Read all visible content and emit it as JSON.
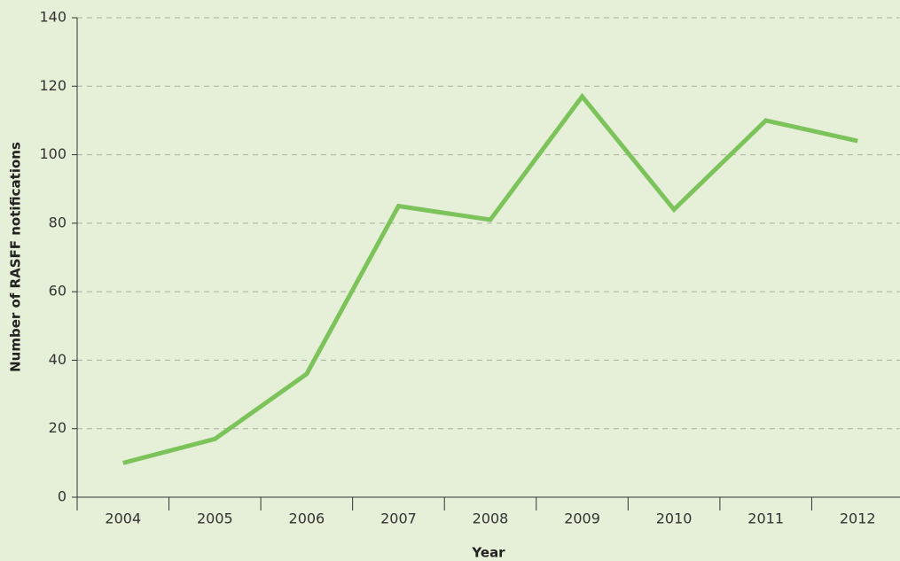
{
  "chart_data": {
    "type": "line",
    "x_label": "Year",
    "y_label": "Number of RASFF notifications",
    "categories": [
      "2004",
      "2005",
      "2006",
      "2007",
      "2008",
      "2009",
      "2010",
      "2011",
      "2012"
    ],
    "values": [
      10,
      17,
      36,
      85,
      81,
      117,
      84,
      110,
      104
    ],
    "color": "#7dc35b",
    "ylim": [
      0,
      140
    ],
    "yticks": [
      0,
      20,
      40,
      60,
      80,
      100,
      120,
      140
    ],
    "grid": true
  }
}
